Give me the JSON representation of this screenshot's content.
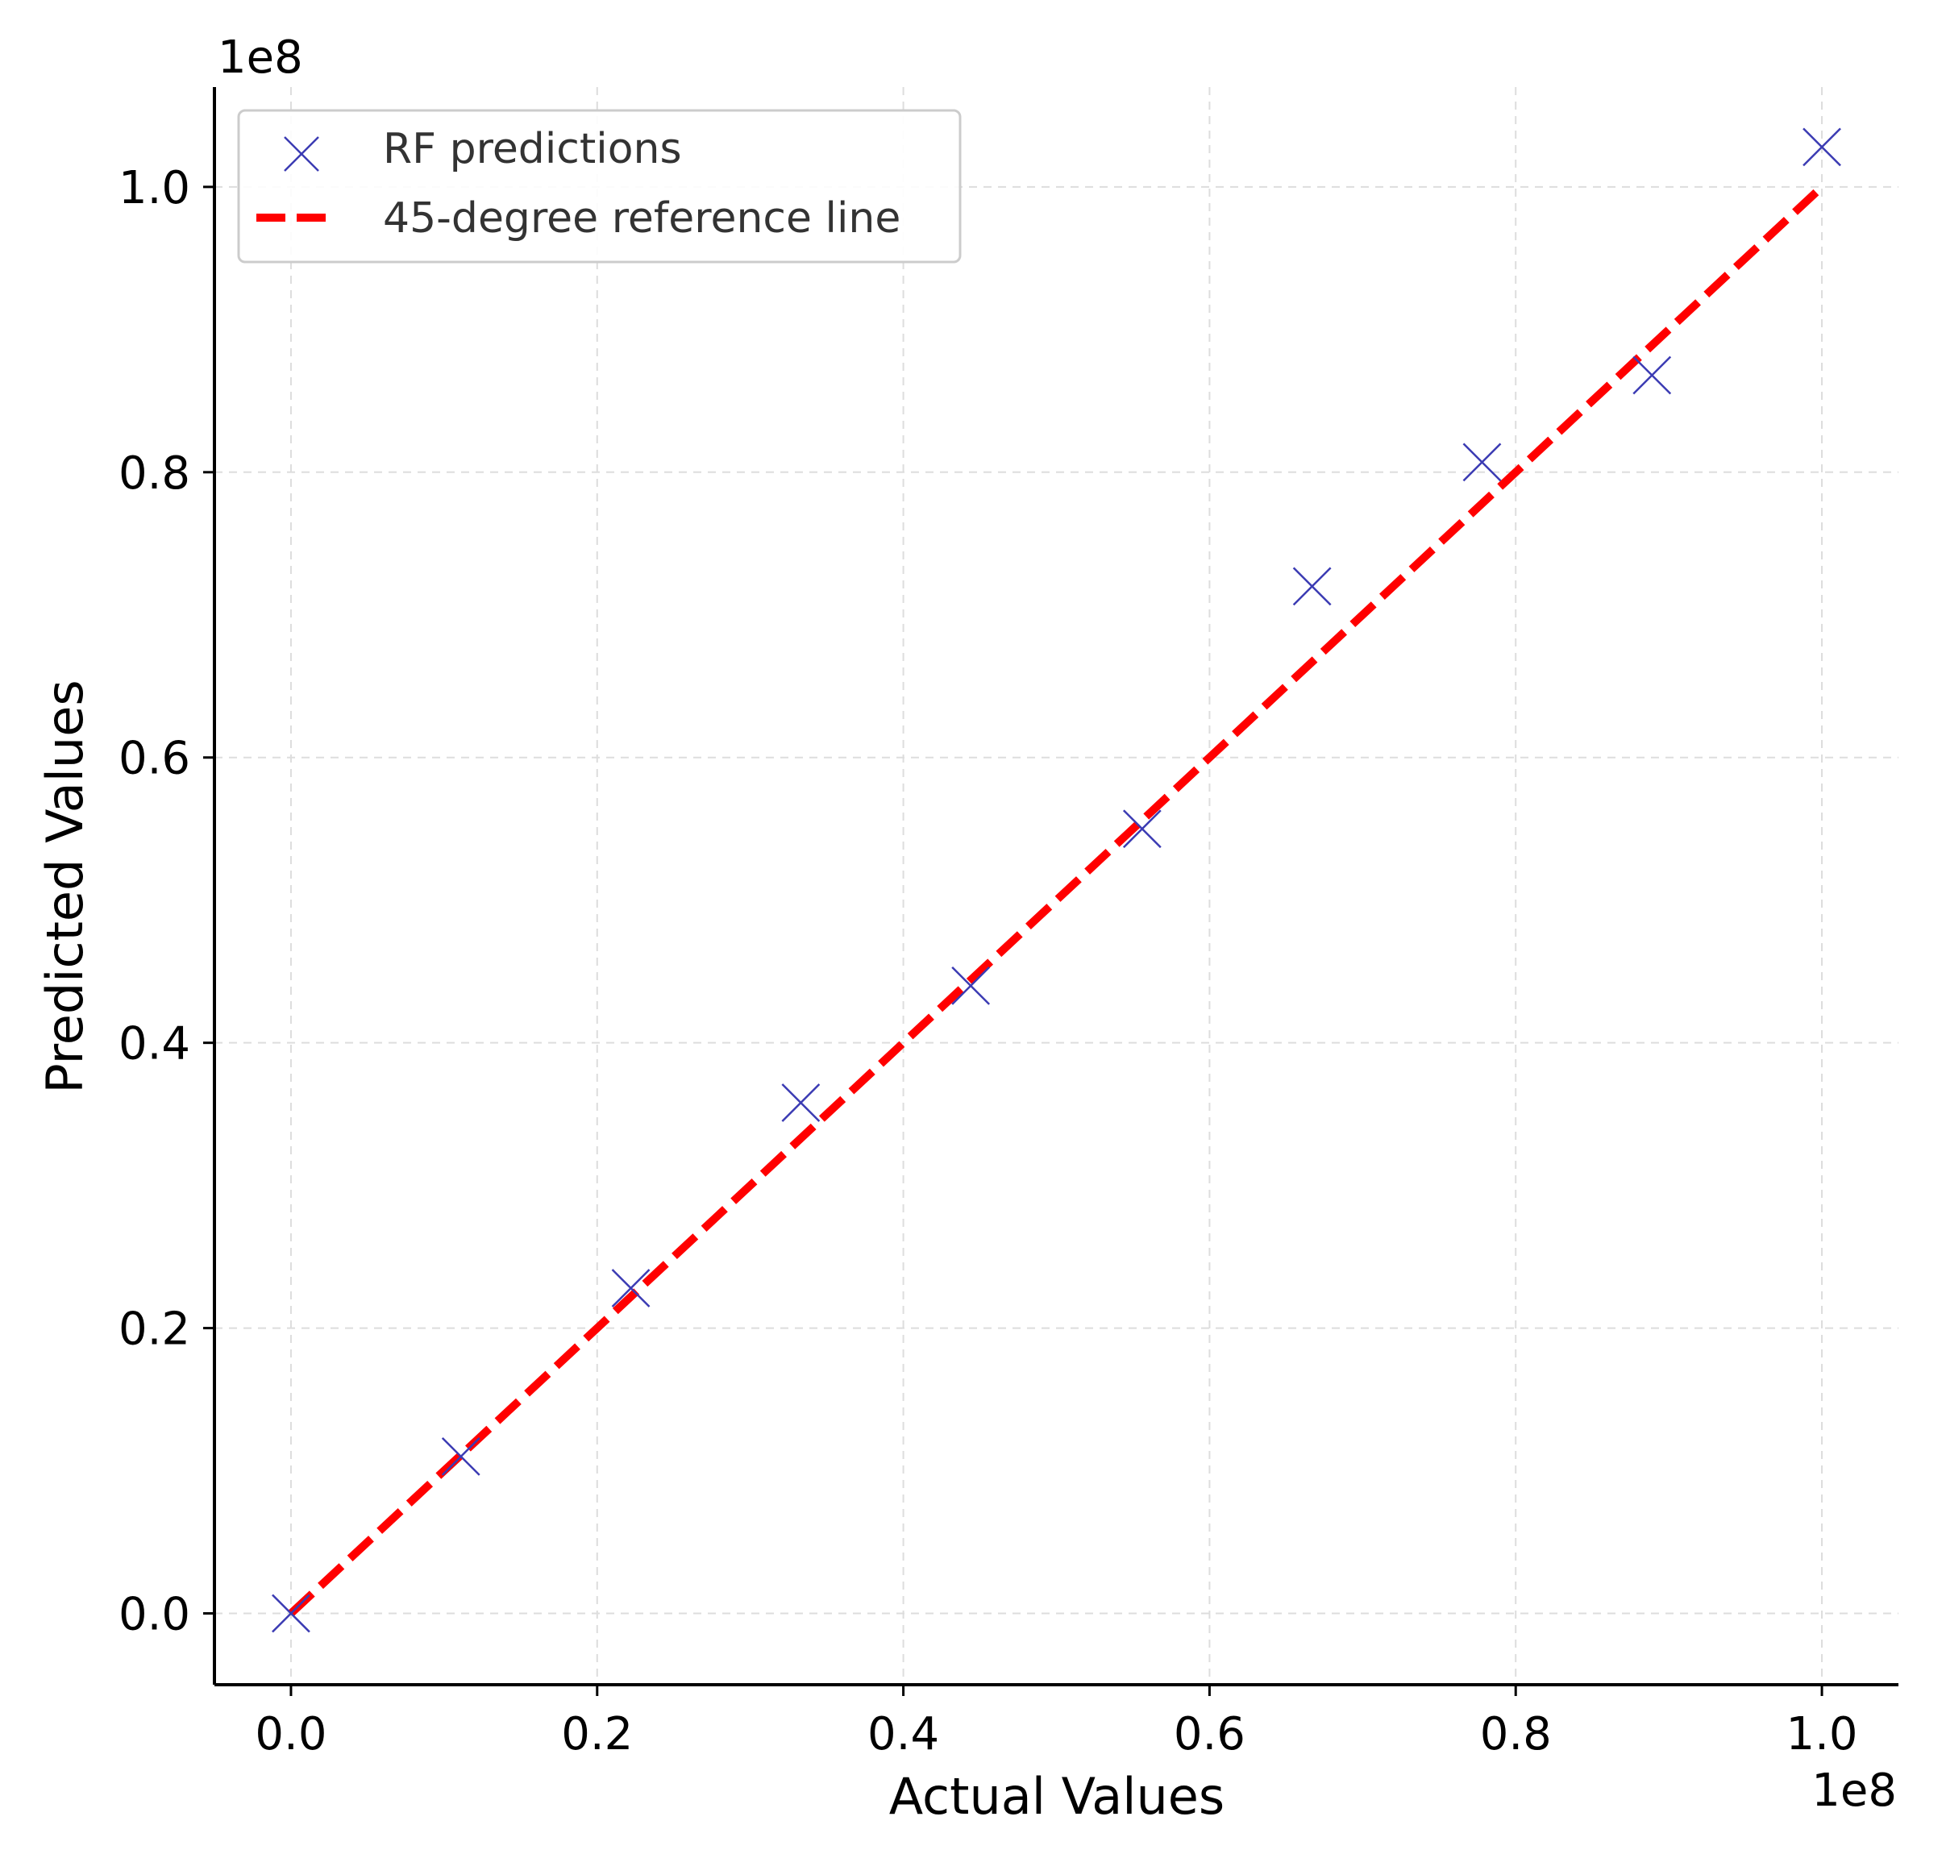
{
  "chart_data": {
    "type": "scatter",
    "xlabel": "Actual Values",
    "ylabel": "Predicted Values",
    "x_offset_label": "1e8",
    "y_offset_label": "1e8",
    "xlim": [
      -0.05,
      1.05
    ],
    "ylim": [
      -0.05,
      1.07
    ],
    "x_ticks": [
      "0.0",
      "0.2",
      "0.4",
      "0.6",
      "0.8",
      "1.0"
    ],
    "y_ticks": [
      "0.0",
      "0.2",
      "0.4",
      "0.6",
      "0.8",
      "1.0"
    ],
    "grid": true,
    "legend_position": "top-left",
    "series": [
      {
        "name": "RF predictions",
        "kind": "scatter",
        "marker": "x",
        "color": "#3b3bb3",
        "x": [
          0.0,
          0.111,
          0.222,
          0.333,
          0.444,
          0.556,
          0.667,
          0.778,
          0.889,
          1.0
        ],
        "y": [
          0.0,
          0.11,
          0.228,
          0.358,
          0.44,
          0.55,
          0.72,
          0.807,
          0.868,
          1.028
        ]
      },
      {
        "name": "45-degree reference line",
        "kind": "line",
        "style": "dashed",
        "color": "#ff0000",
        "x": [
          0.0,
          1.0
        ],
        "y": [
          0.0,
          1.0
        ]
      }
    ]
  }
}
